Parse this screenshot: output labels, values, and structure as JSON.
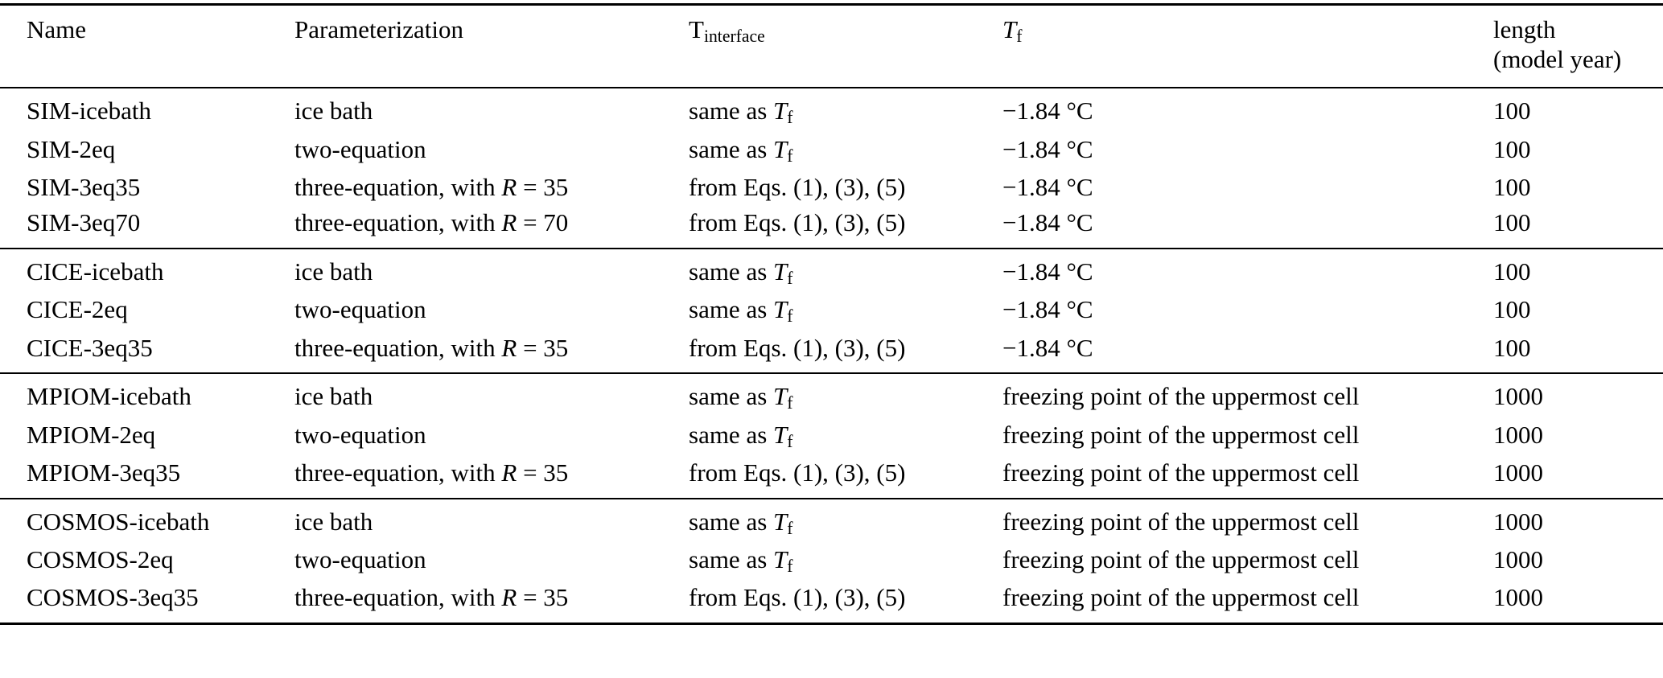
{
  "page": {
    "background": "#ffffff",
    "text_color": "#000000",
    "rule_color": "#000000"
  },
  "table": {
    "headers": {
      "name": "Name",
      "parameterization": "Parameterization",
      "t_interface": [
        {
          "t": "T"
        },
        {
          "t": "interface",
          "s": "sub"
        }
      ],
      "t_f": [
        {
          "t": "T",
          "s": "i"
        },
        {
          "t": "f",
          "s": "sub"
        }
      ],
      "length_line1": "length",
      "length_line2": "(model year)"
    },
    "groups": [
      {
        "rows": [
          {
            "name": "SIM-icebath",
            "parameterization": [
              {
                "t": "ice bath"
              }
            ],
            "t_interface": [
              {
                "t": "same as "
              },
              {
                "t": "T",
                "s": "i"
              },
              {
                "t": "f",
                "s": "sub"
              }
            ],
            "t_f": [
              {
                "t": "−1.84 °C"
              }
            ],
            "length": "100"
          },
          {
            "name": "SIM-2eq",
            "parameterization": [
              {
                "t": "two-equation"
              }
            ],
            "t_interface": [
              {
                "t": "same as "
              },
              {
                "t": "T",
                "s": "i"
              },
              {
                "t": "f",
                "s": "sub"
              }
            ],
            "t_f": [
              {
                "t": "−1.84 °C"
              }
            ],
            "length": "100"
          },
          {
            "name": "SIM-3eq35",
            "parameterization": [
              {
                "t": "three-equation, with "
              },
              {
                "t": "R",
                "s": "i"
              },
              {
                "t": " = 35"
              }
            ],
            "t_interface": [
              {
                "t": "from Eqs. (1), (3), (5)"
              }
            ],
            "t_f": [
              {
                "t": "−1.84 °C"
              }
            ],
            "length": "100"
          },
          {
            "name": "SIM-3eq70",
            "parameterization": [
              {
                "t": "three-equation, with "
              },
              {
                "t": "R",
                "s": "i"
              },
              {
                "t": " = 70"
              }
            ],
            "t_interface": [
              {
                "t": "from Eqs. (1), (3), (5)"
              }
            ],
            "t_f": [
              {
                "t": "−1.84 °C"
              }
            ],
            "length": "100"
          }
        ]
      },
      {
        "rows": [
          {
            "name": "CICE-icebath",
            "parameterization": [
              {
                "t": "ice bath"
              }
            ],
            "t_interface": [
              {
                "t": "same as "
              },
              {
                "t": "T",
                "s": "i"
              },
              {
                "t": "f",
                "s": "sub"
              }
            ],
            "t_f": [
              {
                "t": "−1.84 °C"
              }
            ],
            "length": "100"
          },
          {
            "name": "CICE-2eq",
            "parameterization": [
              {
                "t": "two-equation"
              }
            ],
            "t_interface": [
              {
                "t": "same as "
              },
              {
                "t": "T",
                "s": "i"
              },
              {
                "t": "f",
                "s": "sub"
              }
            ],
            "t_f": [
              {
                "t": "−1.84 °C"
              }
            ],
            "length": "100"
          },
          {
            "name": "CICE-3eq35",
            "parameterization": [
              {
                "t": "three-equation, with "
              },
              {
                "t": "R",
                "s": "i"
              },
              {
                "t": " = 35"
              }
            ],
            "t_interface": [
              {
                "t": "from Eqs. (1), (3), (5)"
              }
            ],
            "t_f": [
              {
                "t": "−1.84 °C"
              }
            ],
            "length": "100"
          }
        ]
      },
      {
        "rows": [
          {
            "name": "MPIOM-icebath",
            "parameterization": [
              {
                "t": "ice bath"
              }
            ],
            "t_interface": [
              {
                "t": "same as "
              },
              {
                "t": "T",
                "s": "i"
              },
              {
                "t": "f",
                "s": "sub"
              }
            ],
            "t_f": [
              {
                "t": "freezing point of the uppermost cell"
              }
            ],
            "length": "1000"
          },
          {
            "name": "MPIOM-2eq",
            "parameterization": [
              {
                "t": "two-equation"
              }
            ],
            "t_interface": [
              {
                "t": "same as "
              },
              {
                "t": "T",
                "s": "i"
              },
              {
                "t": "f",
                "s": "sub"
              }
            ],
            "t_f": [
              {
                "t": "freezing point of the uppermost cell"
              }
            ],
            "length": "1000"
          },
          {
            "name": "MPIOM-3eq35",
            "parameterization": [
              {
                "t": "three-equation, with "
              },
              {
                "t": "R",
                "s": "i"
              },
              {
                "t": " = 35"
              }
            ],
            "t_interface": [
              {
                "t": "from Eqs. (1), (3), (5)"
              }
            ],
            "t_f": [
              {
                "t": "freezing point of the uppermost cell"
              }
            ],
            "length": "1000"
          }
        ]
      },
      {
        "rows": [
          {
            "name": "COSMOS-icebath",
            "parameterization": [
              {
                "t": "ice bath"
              }
            ],
            "t_interface": [
              {
                "t": "same as "
              },
              {
                "t": "T",
                "s": "i"
              },
              {
                "t": "f",
                "s": "sub"
              }
            ],
            "t_f": [
              {
                "t": "freezing point of the uppermost cell"
              }
            ],
            "length": "1000"
          },
          {
            "name": "COSMOS-2eq",
            "parameterization": [
              {
                "t": "two-equation"
              }
            ],
            "t_interface": [
              {
                "t": "same as "
              },
              {
                "t": "T",
                "s": "i"
              },
              {
                "t": "f",
                "s": "sub"
              }
            ],
            "t_f": [
              {
                "t": "freezing point of the uppermost cell"
              }
            ],
            "length": "1000"
          },
          {
            "name": "COSMOS-3eq35",
            "parameterization": [
              {
                "t": "three-equation, with "
              },
              {
                "t": "R",
                "s": "i"
              },
              {
                "t": " = 35"
              }
            ],
            "t_interface": [
              {
                "t": "from Eqs. (1), (3), (5)"
              }
            ],
            "t_f": [
              {
                "t": "freezing point of the uppermost cell"
              }
            ],
            "length": "1000"
          }
        ]
      }
    ]
  }
}
